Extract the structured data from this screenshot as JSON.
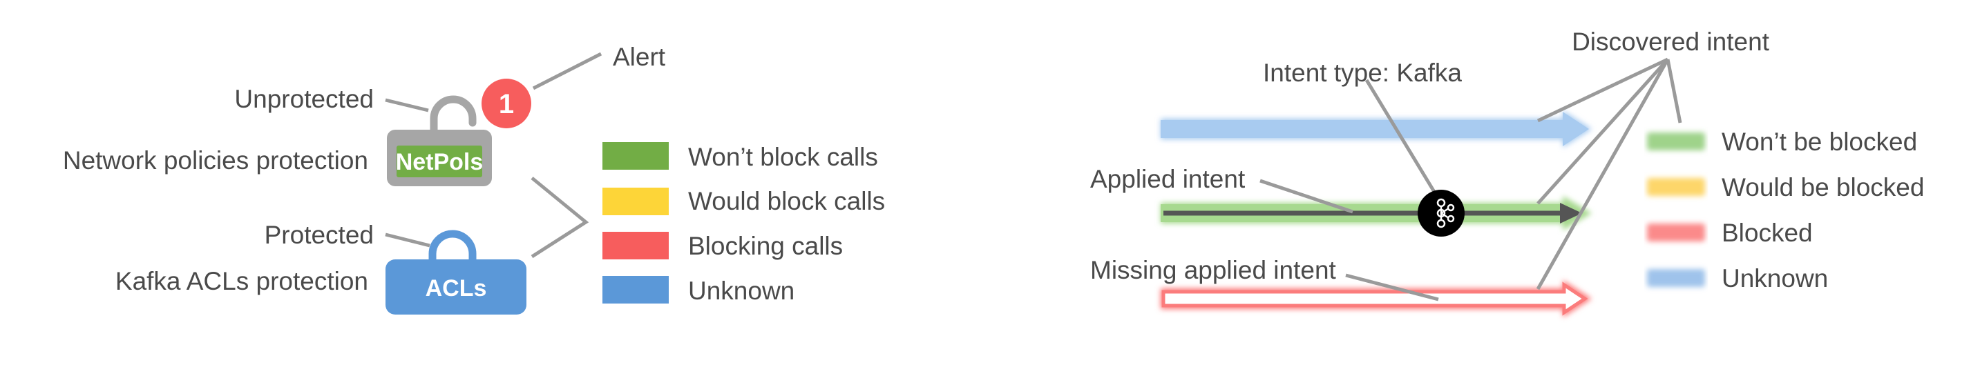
{
  "left": {
    "alert_label": "Alert",
    "alert_count": "1",
    "unprotected_label": "Unprotected",
    "netpol_protection_label": "Network policies protection",
    "netpols_lock_label": "NetPols",
    "protected_label": "Protected",
    "kafka_protection_label": "Kafka ACLs protection",
    "acls_lock_label": "ACLs",
    "legend": [
      {
        "label": "Won’t block calls",
        "color": "#72ad45"
      },
      {
        "label": "Would block calls",
        "color": "#fdd538"
      },
      {
        "label": "Blocking calls",
        "color": "#f75d5d"
      },
      {
        "label": "Unknown",
        "color": "#5b98d8"
      }
    ]
  },
  "right": {
    "intent_type_label": "Intent type: Kafka",
    "discovered_intent_label": "Discovered intent",
    "applied_intent_label": "Applied intent",
    "missing_applied_label": "Missing applied intent",
    "legend": [
      {
        "label": "Won’t be blocked",
        "color": "#9fd38a"
      },
      {
        "label": "Would be blocked",
        "color": "#fdd66a"
      },
      {
        "label": "Blocked",
        "color": "#fb8a8a"
      },
      {
        "label": "Unknown",
        "color": "#9fc3eb"
      }
    ]
  },
  "colors": {
    "text": "#4a4a4a",
    "lock_gray": "#a6a6a6",
    "netpols_green": "#72ad45",
    "acls_blue": "#5b98d8",
    "alert_red": "#f75d5d",
    "arrow_blue": "#a8cbf0",
    "arrow_green": "#a7d98f",
    "arrow_red": "#fb7c7c",
    "kafka_icon": "#000000"
  }
}
